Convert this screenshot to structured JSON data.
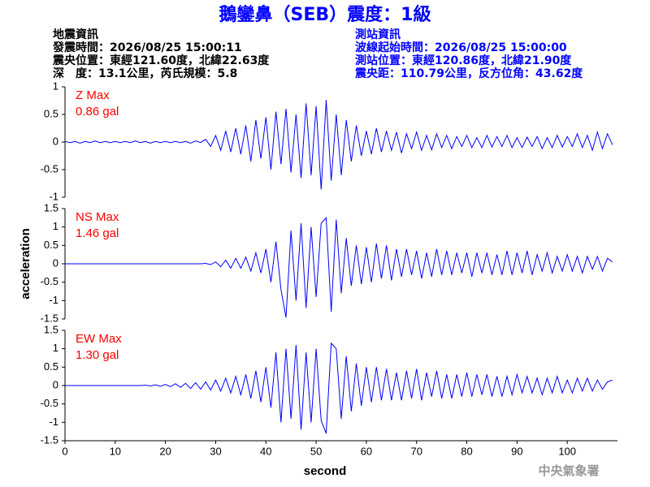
{
  "header": {
    "title": "鵝鑾鼻（SEB）震度：1級",
    "left": [
      "地震資訊",
      "發震時間：2026/08/25 15:00:11",
      "震央位置：東經121.60度，北緯22.63度",
      "深　度：13.1公里，芮氏規模：5.8"
    ],
    "right": [
      "測站資訊",
      "波線起始時間：2026/08/25 15:00:00",
      "測站位置：東經120.86度，北緯21.90度",
      "震央距：110.79公里，反方位角：43.62度"
    ]
  },
  "watermark": "中央氣象署",
  "chart_data": [
    {
      "type": "line",
      "annotation": [
        "Z Max",
        "0.86 gal"
      ],
      "annotation_color": "#ff0000",
      "xlim": [
        0,
        110
      ],
      "ylim": [
        -1,
        1
      ],
      "yticks": [
        -1,
        -0.5,
        0,
        0.5,
        1
      ],
      "x": [
        0,
        1,
        2,
        3,
        4,
        5,
        6,
        7,
        8,
        9,
        10,
        11,
        12,
        13,
        14,
        15,
        16,
        17,
        18,
        19,
        20,
        21,
        22,
        23,
        24,
        25,
        26,
        27,
        28,
        29,
        30,
        31,
        32,
        33,
        34,
        35,
        36,
        37,
        38,
        39,
        40,
        41,
        42,
        43,
        44,
        45,
        46,
        47,
        48,
        49,
        50,
        51,
        52,
        53,
        54,
        55,
        56,
        57,
        58,
        59,
        60,
        61,
        62,
        63,
        64,
        65,
        66,
        67,
        68,
        69,
        70,
        71,
        72,
        73,
        74,
        75,
        76,
        77,
        78,
        79,
        80,
        81,
        82,
        83,
        84,
        85,
        86,
        87,
        88,
        89,
        90,
        91,
        92,
        93,
        94,
        95,
        96,
        97,
        98,
        99,
        100,
        101,
        102,
        103,
        104,
        105,
        106,
        107,
        108,
        109
      ],
      "series": [
        {
          "color": "#0000ff",
          "values": [
            0.01,
            -0.01,
            0.01,
            -0.02,
            0.01,
            -0.01,
            0.02,
            -0.01,
            0.01,
            -0.01,
            0.01,
            -0.01,
            0.01,
            -0.01,
            0.02,
            -0.01,
            0.01,
            -0.02,
            0.01,
            -0.01,
            0.01,
            -0.01,
            0.01,
            -0.01,
            0.01,
            -0.02,
            0.02,
            -0.01,
            0.05,
            -0.08,
            0.12,
            -0.15,
            0.2,
            -0.18,
            0.25,
            -0.22,
            0.3,
            -0.35,
            0.4,
            -0.3,
            0.45,
            -0.5,
            0.55,
            -0.4,
            0.6,
            -0.55,
            0.5,
            -0.65,
            0.7,
            -0.6,
            0.65,
            -0.86,
            0.76,
            -0.7,
            0.5,
            -0.6,
            0.4,
            -0.35,
            0.3,
            -0.25,
            0.2,
            -0.22,
            0.25,
            -0.18,
            0.2,
            -0.15,
            0.18,
            -0.2,
            0.15,
            -0.12,
            0.18,
            -0.15,
            0.12,
            -0.14,
            0.15,
            -0.1,
            0.12,
            -0.12,
            0.1,
            -0.08,
            0.12,
            -0.1,
            0.08,
            -0.1,
            0.12,
            -0.09,
            0.1,
            -0.08,
            0.12,
            -0.1,
            0.08,
            -0.1,
            0.09,
            -0.08,
            0.1,
            -0.12,
            0.08,
            -0.1,
            0.12,
            -0.09,
            0.1,
            -0.08,
            0.15,
            -0.1,
            0.12,
            -0.15,
            0.18,
            -0.12,
            0.15,
            -0.05
          ]
        }
      ]
    },
    {
      "type": "line",
      "annotation": [
        "NS Max",
        "1.46 gal"
      ],
      "annotation_color": "#ff0000",
      "ylabel": "acceleration",
      "xlim": [
        0,
        110
      ],
      "ylim": [
        -1.5,
        1.5
      ],
      "yticks": [
        -1.5,
        -1,
        -0.5,
        0,
        0.5,
        1,
        1.5
      ],
      "x": [
        0,
        1,
        2,
        3,
        4,
        5,
        6,
        7,
        8,
        9,
        10,
        11,
        12,
        13,
        14,
        15,
        16,
        17,
        18,
        19,
        20,
        21,
        22,
        23,
        24,
        25,
        26,
        27,
        28,
        29,
        30,
        31,
        32,
        33,
        34,
        35,
        36,
        37,
        38,
        39,
        40,
        41,
        42,
        43,
        44,
        45,
        46,
        47,
        48,
        49,
        50,
        51,
        52,
        53,
        54,
        55,
        56,
        57,
        58,
        59,
        60,
        61,
        62,
        63,
        64,
        65,
        66,
        67,
        68,
        69,
        70,
        71,
        72,
        73,
        74,
        75,
        76,
        77,
        78,
        79,
        80,
        81,
        82,
        83,
        84,
        85,
        86,
        87,
        88,
        89,
        90,
        91,
        92,
        93,
        94,
        95,
        96,
        97,
        98,
        99,
        100,
        101,
        102,
        103,
        104,
        105,
        106,
        107,
        108,
        109
      ],
      "series": [
        {
          "color": "#0000ff",
          "values": [
            0,
            0,
            0,
            0,
            0,
            0,
            0,
            0,
            0,
            0,
            0,
            0,
            0,
            0,
            0,
            0,
            0,
            0,
            0,
            0,
            0,
            0,
            0,
            0,
            0,
            0,
            0,
            0,
            0.01,
            -0.02,
            0.05,
            -0.08,
            0.1,
            -0.12,
            0.15,
            -0.12,
            0.18,
            -0.2,
            0.3,
            -0.25,
            0.4,
            -0.5,
            0.6,
            -0.7,
            -1.46,
            0.9,
            -1.0,
            1.1,
            -1.2,
            1.0,
            -0.9,
            1.1,
            1.25,
            -1.3,
            1.2,
            -0.8,
            0.7,
            -0.6,
            0.5,
            -0.55,
            0.45,
            -0.5,
            0.55,
            -0.4,
            0.5,
            -0.45,
            0.4,
            -0.35,
            0.4,
            -0.3,
            0.35,
            -0.4,
            0.3,
            -0.35,
            0.4,
            -0.3,
            0.35,
            -0.3,
            0.3,
            -0.25,
            0.3,
            -0.35,
            0.3,
            -0.25,
            0.3,
            -0.3,
            0.25,
            -0.3,
            0.35,
            -0.3,
            0.3,
            -0.25,
            0.35,
            -0.3,
            0.25,
            -0.2,
            0.3,
            -0.25,
            0.2,
            -0.2,
            0.25,
            -0.2,
            0.2,
            -0.25,
            0.2,
            -0.15,
            0.2,
            -0.2,
            0.15,
            0.05
          ]
        }
      ]
    },
    {
      "type": "line",
      "annotation": [
        "EW Max",
        "1.30 gal"
      ],
      "annotation_color": "#ff0000",
      "xlabel": "second",
      "xlim": [
        0,
        110
      ],
      "xticks": [
        0,
        10,
        20,
        30,
        40,
        50,
        60,
        70,
        80,
        90,
        100
      ],
      "ylim": [
        -1.5,
        1.5
      ],
      "yticks": [
        -1.5,
        -1,
        -0.5,
        0,
        0.5,
        1,
        1.5
      ],
      "x": [
        0,
        1,
        2,
        3,
        4,
        5,
        6,
        7,
        8,
        9,
        10,
        11,
        12,
        13,
        14,
        15,
        16,
        17,
        18,
        19,
        20,
        21,
        22,
        23,
        24,
        25,
        26,
        27,
        28,
        29,
        30,
        31,
        32,
        33,
        34,
        35,
        36,
        37,
        38,
        39,
        40,
        41,
        42,
        43,
        44,
        45,
        46,
        47,
        48,
        49,
        50,
        51,
        52,
        53,
        54,
        55,
        56,
        57,
        58,
        59,
        60,
        61,
        62,
        63,
        64,
        65,
        66,
        67,
        68,
        69,
        70,
        71,
        72,
        73,
        74,
        75,
        76,
        77,
        78,
        79,
        80,
        81,
        82,
        83,
        84,
        85,
        86,
        87,
        88,
        89,
        90,
        91,
        92,
        93,
        94,
        95,
        96,
        97,
        98,
        99,
        100,
        101,
        102,
        103,
        104,
        105,
        106,
        107,
        108,
        109
      ],
      "series": [
        {
          "color": "#0000ff",
          "values": [
            0,
            0,
            0,
            0,
            0,
            0,
            0,
            0,
            0,
            0,
            0,
            0,
            0,
            0,
            0,
            0,
            0.01,
            -0.01,
            0.02,
            -0.02,
            0.03,
            -0.03,
            0.05,
            -0.05,
            0.06,
            -0.08,
            0.08,
            -0.1,
            0.1,
            -0.12,
            0.15,
            -0.15,
            0.2,
            -0.2,
            0.25,
            -0.25,
            0.3,
            -0.35,
            0.4,
            -0.45,
            0.5,
            -0.6,
            0.9,
            -1.0,
            1.0,
            -0.9,
            1.1,
            -1.2,
            0.9,
            -1.0,
            1.0,
            -0.95,
            -1.3,
            1.15,
            1.0,
            -0.9,
            0.8,
            -0.7,
            0.6,
            -0.55,
            0.5,
            -0.45,
            0.5,
            -0.4,
            0.45,
            -0.4,
            0.35,
            -0.4,
            0.4,
            -0.35,
            0.45,
            -0.4,
            0.35,
            -0.3,
            0.4,
            -0.35,
            0.3,
            -0.35,
            0.3,
            -0.3,
            0.35,
            -0.3,
            0.3,
            -0.25,
            0.3,
            -0.3,
            0.25,
            -0.3,
            0.25,
            -0.25,
            0.3,
            -0.2,
            0.25,
            -0.2,
            0.2,
            -0.25,
            0.2,
            -0.2,
            0.25,
            -0.2,
            0.15,
            -0.2,
            0.2,
            -0.15,
            0.2,
            -0.15,
            0.15,
            -0.1,
            0.1,
            0.15
          ]
        }
      ]
    }
  ]
}
